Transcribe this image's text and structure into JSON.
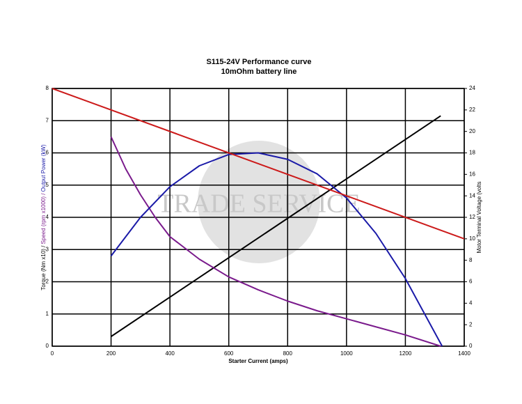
{
  "chart_data": {
    "type": "line",
    "title": "S115-24V Performance  curve",
    "subtitle": "10mOhm battery line",
    "xlabel": "Starter Current (amps)",
    "ylabel_parts": [
      {
        "text": "Torque (Nm x10) / ",
        "color": "#000000"
      },
      {
        "text": "Speed (rpm x1000) / ",
        "color": "#7a1a8c"
      },
      {
        "text": "Output Power (kW)",
        "color": "#1a1aa8"
      }
    ],
    "y2label": "Motor Terminal Voltage (volts",
    "y2label_color": "#cc1a1a",
    "watermark": "TRADE SERVICE",
    "xlim": [
      0,
      1400
    ],
    "xticks": [
      0,
      200,
      400,
      600,
      800,
      1000,
      1200,
      1400
    ],
    "ylim": [
      0,
      8
    ],
    "yticks": [
      0,
      1,
      2,
      3,
      4,
      5,
      6,
      7,
      8
    ],
    "y2lim": [
      0,
      24
    ],
    "y2ticks": [
      0,
      2,
      4,
      6,
      8,
      10,
      12,
      14,
      16,
      18,
      20,
      22,
      24
    ],
    "grid": true,
    "series": [
      {
        "color": "#000000",
        "x": [
          200,
          1320
        ],
        "values": [
          0.3,
          7.15
        ]
      },
      {
        "color": "#7a1a8c",
        "x": [
          200,
          250,
          300,
          350,
          400,
          500,
          600,
          700,
          800,
          900,
          1000,
          1100,
          1200,
          1320
        ],
        "values": [
          6.5,
          5.5,
          4.7,
          4.0,
          3.4,
          2.7,
          2.15,
          1.75,
          1.4,
          1.1,
          0.85,
          0.6,
          0.35,
          0
        ]
      },
      {
        "color": "#1a1aa8",
        "x": [
          200,
          300,
          400,
          500,
          600,
          700,
          800,
          900,
          1000,
          1100,
          1200,
          1325
        ],
        "values": [
          2.8,
          4.0,
          4.95,
          5.6,
          5.95,
          6.0,
          5.8,
          5.35,
          4.6,
          3.5,
          2.1,
          0
        ]
      },
      {
        "color": "#cc1a1a",
        "axis": "y2",
        "x": [
          0,
          1400
        ],
        "values": [
          24,
          10
        ]
      }
    ]
  }
}
